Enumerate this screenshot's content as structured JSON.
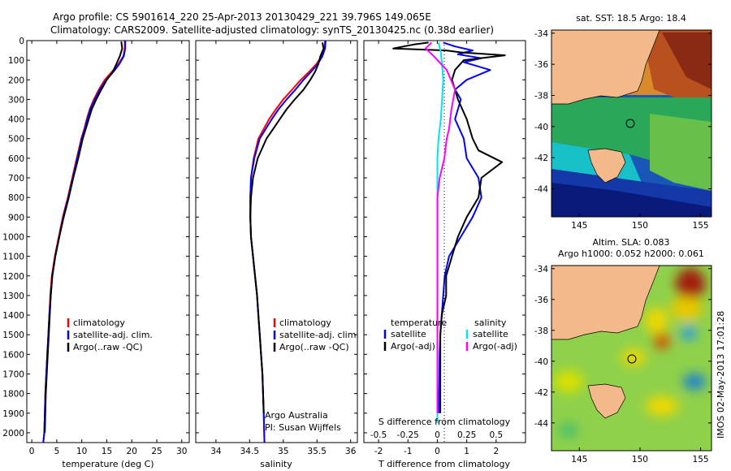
{
  "header": {
    "line1": "Argo profile: CS 5901614_220 25-Apr-2013 20130429_221 39.796S 149.065E",
    "line2": "Climatology: CARS2009. Satellite-adjusted climatology: synTS_20130425.nc (0.38d earlier)"
  },
  "colors": {
    "climatology": "#ff0000",
    "satellite": "#0000ff",
    "argo": "#000000",
    "sat_salinity": "#00e5ee",
    "argo_salinity": "#ff00ff",
    "land": "#f4b98a"
  },
  "depth_axis": {
    "ylim": [
      0,
      2050
    ],
    "ticks": [
      0,
      100,
      200,
      300,
      400,
      500,
      600,
      700,
      800,
      900,
      1000,
      1100,
      1200,
      1300,
      1400,
      1500,
      1600,
      1700,
      1800,
      1900,
      2000
    ],
    "tick_labels": [
      "0",
      "100",
      "200",
      "300",
      "400",
      "500",
      "600",
      "700",
      "800",
      "900",
      "1000",
      "1100",
      "1200",
      "1300",
      "1400",
      "1500",
      "1600",
      "1700",
      "1800",
      "1900",
      "2000"
    ]
  },
  "chart_data": [
    {
      "id": "temperature",
      "type": "line",
      "xlabel": "temperature (deg C)",
      "xlim": [
        -1,
        31.5
      ],
      "x_ticks": [
        0,
        5,
        10,
        15,
        20,
        25,
        30
      ],
      "x_tick_labels": [
        "0",
        "5",
        "10",
        "15",
        "20",
        "25",
        "30"
      ],
      "legend": [
        "climatology",
        "satellite-adj. clim.",
        "Argo(..raw -QC)"
      ],
      "series": [
        {
          "name": "climatology",
          "color": "#ff0000",
          "x": [
            18.6,
            18.6,
            18.3,
            17.3,
            16.0,
            14.6,
            13.4,
            12.4,
            11.6,
            11.0,
            10.5,
            9.9,
            9.0,
            8.1,
            7.2,
            6.2,
            5.4,
            4.6,
            4.0,
            3.7,
            3.5,
            3.3,
            3.1,
            2.9,
            2.7,
            2.6,
            2.5,
            2.3
          ],
          "y": [
            0,
            40,
            80,
            120,
            160,
            200,
            250,
            300,
            350,
            400,
            450,
            500,
            600,
            700,
            800,
            900,
            1000,
            1100,
            1200,
            1300,
            1400,
            1500,
            1600,
            1700,
            1800,
            1900,
            2000,
            2050
          ]
        },
        {
          "name": "satellite-adj. clim.",
          "color": "#0000ff",
          "x": [
            18.7,
            18.7,
            18.4,
            17.5,
            16.3,
            14.9,
            13.6,
            12.6,
            11.7,
            11.1,
            10.6,
            10.0,
            9.1,
            8.2,
            7.3,
            6.3,
            5.5,
            4.7,
            4.1,
            3.8,
            3.5,
            3.3,
            3.1,
            2.9,
            2.7,
            2.6,
            2.5,
            2.3
          ],
          "y": [
            0,
            40,
            80,
            120,
            160,
            200,
            250,
            300,
            350,
            400,
            450,
            500,
            600,
            700,
            800,
            900,
            1000,
            1100,
            1200,
            1300,
            1400,
            1500,
            1600,
            1700,
            1800,
            1900,
            2000,
            2050
          ]
        },
        {
          "name": "Argo(..raw -QC)",
          "color": "#000000",
          "x": [
            17.9,
            18.1,
            17.6,
            16.9,
            16.2,
            15.0,
            13.9,
            12.9,
            12.0,
            11.4,
            10.8,
            10.2,
            9.3,
            8.3,
            7.4,
            6.4,
            5.5,
            4.7,
            4.1,
            3.8,
            3.6,
            3.4,
            3.2,
            3.0,
            2.8,
            2.7,
            2.6
          ],
          "y": [
            5,
            40,
            80,
            120,
            160,
            200,
            250,
            300,
            350,
            400,
            450,
            500,
            600,
            700,
            800,
            900,
            1000,
            1100,
            1200,
            1300,
            1400,
            1500,
            1600,
            1700,
            1800,
            1900,
            2000
          ]
        }
      ]
    },
    {
      "id": "salinity",
      "type": "line",
      "xlabel": "salinity",
      "xlim": [
        33.7,
        36.1
      ],
      "x_ticks": [
        34,
        34.5,
        35,
        35.5,
        36
      ],
      "x_tick_labels": [
        "34",
        "34.5",
        "35",
        "35.5",
        "36"
      ],
      "legend": [
        "climatology",
        "satellite-adj. clim.",
        "Argo(..raw -QC)"
      ],
      "annotations": [
        "Argo Australia",
        "PI: Susan Wijffels"
      ],
      "series": [
        {
          "name": "climatology",
          "color": "#ff0000",
          "x": [
            35.62,
            35.61,
            35.57,
            35.49,
            35.38,
            35.26,
            35.13,
            35.0,
            34.89,
            34.79,
            34.71,
            34.63,
            34.56,
            34.52,
            34.51,
            34.51,
            34.52,
            34.55,
            34.58,
            34.61,
            34.63,
            34.65,
            34.67,
            34.69,
            34.7,
            34.71,
            34.72
          ],
          "y": [
            0,
            40,
            80,
            120,
            160,
            200,
            250,
            300,
            350,
            400,
            450,
            500,
            600,
            700,
            800,
            900,
            1000,
            1100,
            1200,
            1300,
            1400,
            1500,
            1600,
            1700,
            1800,
            1900,
            2050
          ]
        },
        {
          "name": "satellite-adj. clim.",
          "color": "#0000ff",
          "x": [
            35.63,
            35.62,
            35.58,
            35.51,
            35.41,
            35.3,
            35.18,
            35.05,
            34.93,
            34.83,
            34.74,
            34.65,
            34.57,
            34.52,
            34.51,
            34.51,
            34.52,
            34.55,
            34.58,
            34.61,
            34.63,
            34.65,
            34.67,
            34.69,
            34.7,
            34.71,
            34.72
          ],
          "y": [
            0,
            40,
            80,
            120,
            160,
            200,
            250,
            300,
            350,
            400,
            450,
            500,
            600,
            700,
            800,
            900,
            1000,
            1100,
            1200,
            1300,
            1400,
            1500,
            1600,
            1700,
            1800,
            1900,
            2050
          ]
        },
        {
          "name": "Argo(..raw -QC)",
          "color": "#000000",
          "x": [
            35.58,
            35.6,
            35.55,
            35.52,
            35.47,
            35.4,
            35.3,
            35.17,
            35.05,
            34.95,
            34.85,
            34.75,
            34.62,
            34.55,
            34.52,
            34.51,
            34.52,
            34.55,
            34.58,
            34.61,
            34.63,
            34.65,
            34.67,
            34.69,
            34.7,
            34.71
          ],
          "y": [
            10,
            40,
            80,
            120,
            160,
            200,
            250,
            300,
            350,
            400,
            450,
            500,
            600,
            700,
            800,
            900,
            1000,
            1100,
            1200,
            1300,
            1400,
            1500,
            1600,
            1700,
            1800,
            1900
          ]
        }
      ]
    },
    {
      "id": "difference",
      "type": "line",
      "xlabel": "T difference from climatology",
      "top_label": "S difference from climatology",
      "xlim": [
        -2.5,
        3
      ],
      "x_ticks": [
        -2,
        -1,
        0,
        1,
        2
      ],
      "x_tick_labels": [
        "-2",
        "-1",
        "0",
        "1",
        "2"
      ],
      "s_ticks": [
        -0.5,
        -0.25,
        0,
        0.25,
        0.5
      ],
      "s_tick_labels": [
        "-0.5",
        "-0.25",
        "0",
        "0.25",
        "0.5"
      ],
      "legend_headers": [
        "temperature",
        "salinity"
      ],
      "legend": [
        "satellite",
        "Argo(-adj)",
        "satellite",
        "Argo(-adj)"
      ],
      "series": [
        {
          "name": "temperature satellite",
          "color": "#0000ff",
          "x": [
            0.2,
            0.6,
            1.2,
            0.7,
            1.5,
            0.9,
            1.8,
            1.0,
            0.6,
            0.8,
            0.7,
            0.6,
            0.9,
            1.0,
            1.4,
            1.5,
            1.2,
            0.8,
            0.4,
            0.25,
            0.15,
            0.1,
            0.08,
            0.07,
            0.06,
            0.06
          ],
          "y": [
            10,
            30,
            50,
            70,
            90,
            110,
            150,
            200,
            250,
            300,
            350,
            400,
            500,
            600,
            700,
            800,
            900,
            1000,
            1100,
            1200,
            1400,
            1500,
            1600,
            1700,
            1800,
            1900
          ]
        },
        {
          "name": "temperature Argo(-adj)",
          "color": "#000000",
          "x": [
            -0.3,
            -0.8,
            -1.5,
            0.3,
            0.8,
            2.3,
            0.9,
            0.6,
            0.5,
            0.7,
            1.0,
            1.2,
            1.4,
            2.2,
            1.5,
            1.4,
            1.0,
            0.7,
            0.5,
            0.3,
            0.3,
            0.15,
            0.1,
            0.1,
            0.1,
            0.1
          ],
          "y": [
            10,
            20,
            40,
            50,
            60,
            75,
            100,
            150,
            200,
            300,
            400,
            500,
            560,
            620,
            700,
            800,
            900,
            1000,
            1100,
            1200,
            1300,
            1400,
            1500,
            1600,
            1700,
            1900
          ]
        },
        {
          "name": "salinity satellite",
          "color": "#00e5ee",
          "x": [
            0.01,
            0.03,
            0.04,
            0.05,
            0.04,
            0.03,
            0.01,
            0.0,
            0.0,
            0.0,
            0.0,
            0.0,
            0.0,
            0.0,
            0.0,
            0.0,
            0.0,
            0.0
          ],
          "y": [
            10,
            60,
            120,
            200,
            300,
            400,
            500,
            600,
            700,
            800,
            900,
            1000,
            1100,
            1200,
            1400,
            1600,
            1800,
            1950
          ]
        },
        {
          "name": "salinity Argo(-adj)",
          "color": "#ff00ff",
          "x": [
            -0.05,
            -0.1,
            -0.03,
            0.08,
            0.15,
            0.12,
            0.1,
            0.08,
            0.06,
            0.02,
            0.0,
            0.0,
            0.0,
            0.0,
            0.0,
            0.0,
            0.0,
            0.0
          ],
          "y": [
            10,
            40,
            80,
            150,
            250,
            350,
            450,
            500,
            600,
            700,
            800,
            900,
            1000,
            1100,
            1300,
            1500,
            1700,
            1900
          ]
        }
      ]
    }
  ],
  "maps": {
    "sst": {
      "title": "sat. SST: 18.5 Argo: 18.4",
      "lat_ticks": [
        "-34",
        "-36",
        "-38",
        "-40",
        "-42",
        "-44"
      ],
      "lon_ticks": [
        "145",
        "150",
        "155"
      ]
    },
    "sla": {
      "title1": "Altim. SLA: 0.083",
      "title2": "Argo h1000: 0.052 h2000: 0.061",
      "lat_ticks": [
        "-34",
        "-36",
        "-38",
        "-40",
        "-42",
        "-44"
      ],
      "lon_ticks": [
        "145",
        "150",
        "155"
      ]
    }
  },
  "footer": {
    "timestamp": "IMOS 02-May-2013 17:01:28"
  }
}
